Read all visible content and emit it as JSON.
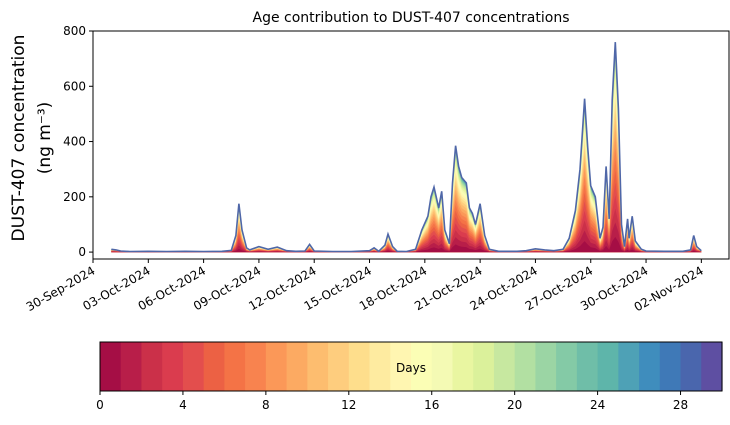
{
  "chart_data": {
    "type": "area",
    "title": "Age contribution to DUST-407 concentrations",
    "ylabel_line1": "DUST-407 concentration",
    "ylabel_line2": "(ng m⁻³)",
    "xlabel": "",
    "x_range": [
      "2024-09-30T00:00",
      "2024-11-03T12:00"
    ],
    "ylim": [
      -25,
      800
    ],
    "yticks": [
      0,
      200,
      400,
      600,
      800
    ],
    "xticks": [
      "30-Sep-2024",
      "03-Oct-2024",
      "06-Oct-2024",
      "09-Oct-2024",
      "12-Oct-2024",
      "15-Oct-2024",
      "18-Oct-2024",
      "21-Oct-2024",
      "24-Oct-2024",
      "27-Oct-2024",
      "30-Oct-2024",
      "02-Nov-2024"
    ],
    "grid": false,
    "stacked_by": "age in days (0-30), colormap Spectral",
    "total_series": {
      "name": "total",
      "color": "#4f67a8",
      "points": [
        [
          "2024-10-01T00:00",
          10
        ],
        [
          "2024-10-01T06:00",
          8
        ],
        [
          "2024-10-01T12:00",
          4
        ],
        [
          "2024-10-02T00:00",
          2
        ],
        [
          "2024-10-03T00:00",
          3
        ],
        [
          "2024-10-04T00:00",
          2
        ],
        [
          "2024-10-05T00:00",
          3
        ],
        [
          "2024-10-06T00:00",
          2
        ],
        [
          "2024-10-07T00:00",
          3
        ],
        [
          "2024-10-07T12:00",
          6
        ],
        [
          "2024-10-07T18:00",
          60
        ],
        [
          "2024-10-07T22:00",
          175
        ],
        [
          "2024-10-08T02:00",
          80
        ],
        [
          "2024-10-08T08:00",
          15
        ],
        [
          "2024-10-08T12:00",
          8
        ],
        [
          "2024-10-09T00:00",
          20
        ],
        [
          "2024-10-09T12:00",
          10
        ],
        [
          "2024-10-10T00:00",
          18
        ],
        [
          "2024-10-10T12:00",
          5
        ],
        [
          "2024-10-11T00:00",
          3
        ],
        [
          "2024-10-11T12:00",
          4
        ],
        [
          "2024-10-11T18:00",
          28
        ],
        [
          "2024-10-12T00:00",
          4
        ],
        [
          "2024-10-13T00:00",
          2
        ],
        [
          "2024-10-14T00:00",
          2
        ],
        [
          "2024-10-15T00:00",
          5
        ],
        [
          "2024-10-15T06:00",
          15
        ],
        [
          "2024-10-15T12:00",
          3
        ],
        [
          "2024-10-15T20:00",
          25
        ],
        [
          "2024-10-16T00:00",
          65
        ],
        [
          "2024-10-16T06:00",
          20
        ],
        [
          "2024-10-16T12:00",
          3
        ],
        [
          "2024-10-17T00:00",
          2
        ],
        [
          "2024-10-17T12:00",
          10
        ],
        [
          "2024-10-17T20:00",
          80
        ],
        [
          "2024-10-18T04:00",
          130
        ],
        [
          "2024-10-18T08:00",
          200
        ],
        [
          "2024-10-18T12:00",
          235
        ],
        [
          "2024-10-18T18:00",
          160
        ],
        [
          "2024-10-18T22:00",
          220
        ],
        [
          "2024-10-19T02:00",
          80
        ],
        [
          "2024-10-19T08:00",
          30
        ],
        [
          "2024-10-19T12:00",
          250
        ],
        [
          "2024-10-19T16:00",
          385
        ],
        [
          "2024-10-19T20:00",
          310
        ],
        [
          "2024-10-20T00:00",
          270
        ],
        [
          "2024-10-20T06:00",
          250
        ],
        [
          "2024-10-20T10:00",
          160
        ],
        [
          "2024-10-20T14:00",
          140
        ],
        [
          "2024-10-20T18:00",
          100
        ],
        [
          "2024-10-21T00:00",
          175
        ],
        [
          "2024-10-21T06:00",
          60
        ],
        [
          "2024-10-21T12:00",
          10
        ],
        [
          "2024-10-22T00:00",
          3
        ],
        [
          "2024-10-23T00:00",
          3
        ],
        [
          "2024-10-23T12:00",
          5
        ],
        [
          "2024-10-24T00:00",
          12
        ],
        [
          "2024-10-24T12:00",
          8
        ],
        [
          "2024-10-25T00:00",
          5
        ],
        [
          "2024-10-25T12:00",
          10
        ],
        [
          "2024-10-25T20:00",
          50
        ],
        [
          "2024-10-26T04:00",
          150
        ],
        [
          "2024-10-26T10:00",
          300
        ],
        [
          "2024-10-26T16:00",
          555
        ],
        [
          "2024-10-26T20:00",
          380
        ],
        [
          "2024-10-27T00:00",
          240
        ],
        [
          "2024-10-27T06:00",
          200
        ],
        [
          "2024-10-27T12:00",
          50
        ],
        [
          "2024-10-27T16:00",
          90
        ],
        [
          "2024-10-27T20:00",
          310
        ],
        [
          "2024-10-28T00:00",
          120
        ],
        [
          "2024-10-28T04:00",
          550
        ],
        [
          "2024-10-28T08:00",
          760
        ],
        [
          "2024-10-28T12:00",
          520
        ],
        [
          "2024-10-28T16:00",
          100
        ],
        [
          "2024-10-28T20:00",
          20
        ],
        [
          "2024-10-29T00:00",
          120
        ],
        [
          "2024-10-29T02:00",
          50
        ],
        [
          "2024-10-29T06:00",
          130
        ],
        [
          "2024-10-29T10:00",
          40
        ],
        [
          "2024-10-29T18:00",
          10
        ],
        [
          "2024-10-30T00:00",
          4
        ],
        [
          "2024-10-31T00:00",
          3
        ],
        [
          "2024-11-01T00:00",
          3
        ],
        [
          "2024-11-01T10:00",
          8
        ],
        [
          "2024-11-01T14:00",
          60
        ],
        [
          "2024-11-01T18:00",
          20
        ],
        [
          "2024-11-02T00:00",
          5
        ]
      ]
    },
    "colorbar": {
      "label": "Days",
      "range": [
        0,
        30
      ],
      "ticks": [
        0,
        4,
        8,
        12,
        16,
        20,
        24,
        28
      ],
      "colors": [
        "#a50e45",
        "#b81e49",
        "#cb3049",
        "#da3c4e",
        "#e34e4d",
        "#ec6144",
        "#f47346",
        "#f8834f",
        "#fb9858",
        "#fcaa62",
        "#fdbd6f",
        "#fecd7e",
        "#fede8c",
        "#feeba0",
        "#fff6b1",
        "#fbfeb5",
        "#f4fab4",
        "#e9f6a1",
        "#dbf19b",
        "#c7e8a0",
        "#b2e0a2",
        "#9bd5a4",
        "#84caa6",
        "#6fbea8",
        "#5eb5aa",
        "#4ea1b6",
        "#3f8dbd",
        "#3f79b7",
        "#4a66ad",
        "#5e4fa2"
      ]
    }
  }
}
